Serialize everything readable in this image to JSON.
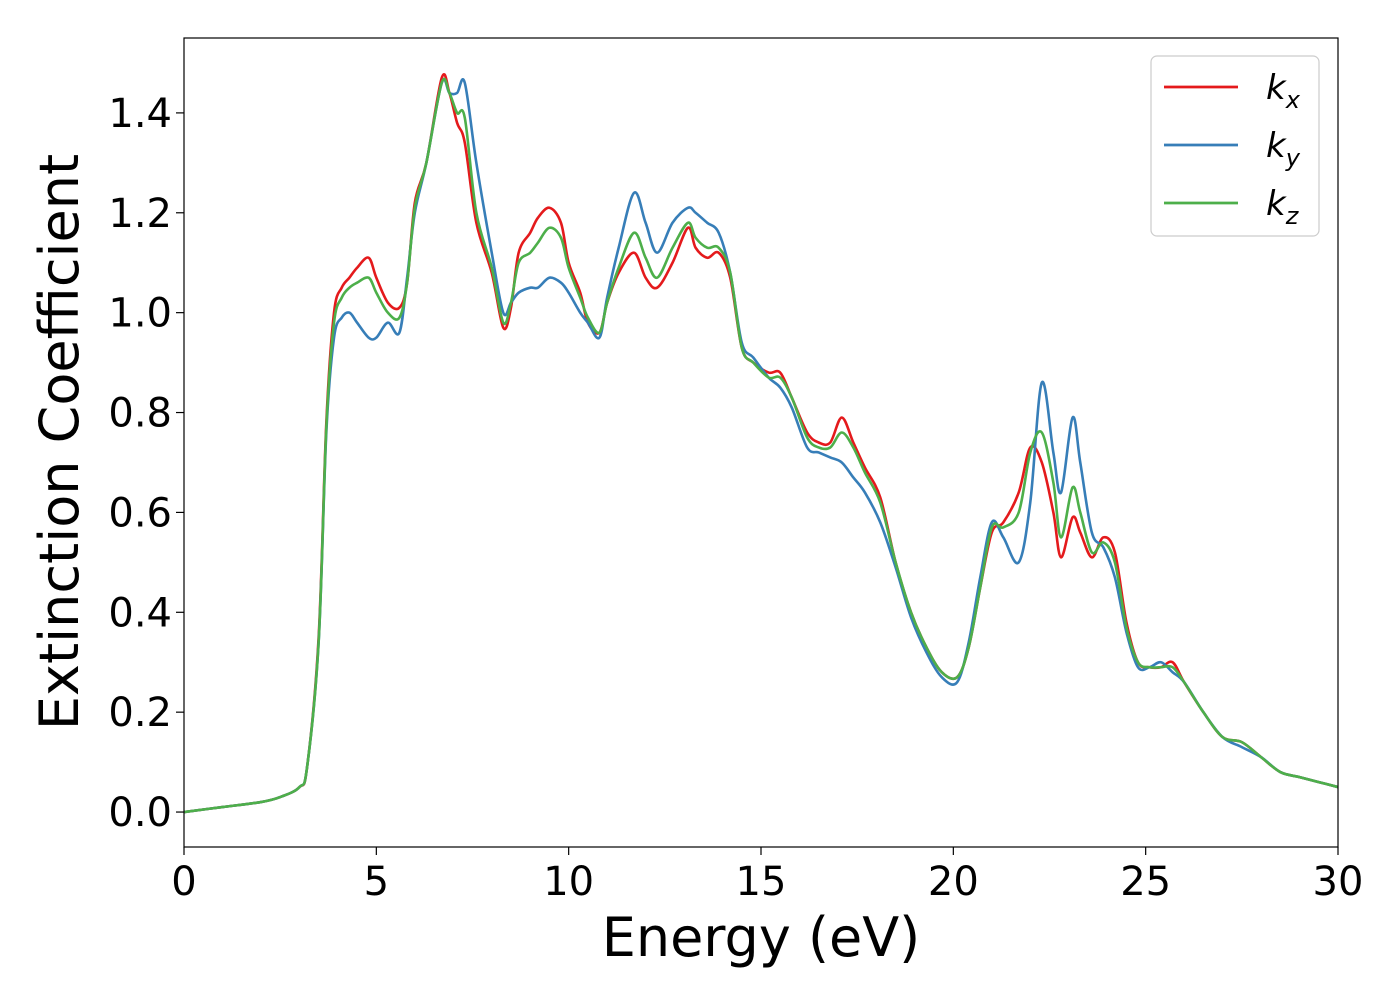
{
  "chart_data": {
    "type": "line",
    "xlabel": "Energy (eV)",
    "ylabel": "Extinction Coefficient",
    "xlim": [
      0,
      30
    ],
    "ylim": [
      -0.07,
      1.55
    ],
    "xticks": [
      "0",
      "5",
      "10",
      "15",
      "20",
      "25",
      "30"
    ],
    "yticks": [
      "0.0",
      "0.2",
      "0.4",
      "0.6",
      "0.8",
      "1.0",
      "1.2",
      "1.4"
    ],
    "legend_position": "top-right",
    "grid": false,
    "series": [
      {
        "name": "k",
        "subscript": "x",
        "color": "#e41a1c",
        "x": [
          0,
          1,
          2,
          2.5,
          3,
          3.2,
          3.5,
          3.7,
          3.9,
          4.1,
          4.3,
          4.5,
          4.8,
          5.0,
          5.3,
          5.6,
          5.8,
          6.0,
          6.3,
          6.7,
          6.9,
          7.1,
          7.3,
          7.6,
          8.0,
          8.3,
          8.5,
          8.7,
          9.0,
          9.2,
          9.5,
          9.8,
          10.0,
          10.3,
          10.5,
          10.8,
          11.0,
          11.3,
          11.7,
          12.0,
          12.3,
          12.7,
          13.1,
          13.3,
          13.6,
          13.9,
          14.2,
          14.5,
          14.8,
          15.2,
          15.5,
          15.8,
          16.2,
          16.5,
          16.8,
          17.1,
          17.4,
          17.7,
          18.1,
          18.5,
          18.9,
          19.3,
          19.7,
          20.1,
          20.4,
          20.7,
          21.0,
          21.3,
          21.7,
          22.0,
          22.3,
          22.6,
          22.8,
          23.1,
          23.3,
          23.6,
          23.9,
          24.2,
          24.5,
          24.8,
          25.1,
          25.4,
          25.7,
          26.0,
          26.5,
          27.0,
          27.5,
          28.0,
          28.5,
          29.0,
          29.5,
          30.0
        ],
        "values": [
          0.0,
          0.01,
          0.02,
          0.03,
          0.05,
          0.09,
          0.35,
          0.78,
          1.0,
          1.05,
          1.07,
          1.09,
          1.11,
          1.07,
          1.02,
          1.01,
          1.06,
          1.22,
          1.3,
          1.47,
          1.44,
          1.38,
          1.34,
          1.18,
          1.08,
          0.97,
          1.01,
          1.12,
          1.16,
          1.19,
          1.21,
          1.18,
          1.1,
          1.04,
          0.98,
          0.96,
          1.02,
          1.08,
          1.12,
          1.07,
          1.05,
          1.1,
          1.17,
          1.13,
          1.11,
          1.12,
          1.07,
          0.93,
          0.9,
          0.88,
          0.88,
          0.83,
          0.76,
          0.74,
          0.74,
          0.79,
          0.74,
          0.69,
          0.63,
          0.5,
          0.4,
          0.33,
          0.28,
          0.27,
          0.33,
          0.45,
          0.56,
          0.58,
          0.64,
          0.73,
          0.7,
          0.6,
          0.51,
          0.59,
          0.56,
          0.51,
          0.55,
          0.52,
          0.38,
          0.3,
          0.29,
          0.29,
          0.3,
          0.26,
          0.2,
          0.15,
          0.14,
          0.11,
          0.08,
          0.07,
          0.06,
          0.05
        ]
      },
      {
        "name": "k",
        "subscript": "y",
        "color": "#377eb8",
        "x": [
          0,
          1,
          2,
          2.5,
          3,
          3.2,
          3.5,
          3.7,
          3.9,
          4.1,
          4.3,
          4.5,
          4.8,
          5.0,
          5.3,
          5.6,
          5.8,
          6.0,
          6.3,
          6.7,
          6.9,
          7.1,
          7.3,
          7.6,
          8.0,
          8.3,
          8.5,
          8.7,
          9.0,
          9.2,
          9.5,
          9.8,
          10.0,
          10.3,
          10.5,
          10.8,
          11.0,
          11.3,
          11.7,
          12.0,
          12.3,
          12.7,
          13.1,
          13.3,
          13.6,
          13.9,
          14.2,
          14.5,
          14.8,
          15.2,
          15.5,
          15.8,
          16.2,
          16.5,
          16.8,
          17.1,
          17.4,
          17.7,
          18.1,
          18.5,
          18.9,
          19.3,
          19.7,
          20.1,
          20.4,
          20.7,
          21.0,
          21.3,
          21.7,
          22.0,
          22.3,
          22.6,
          22.8,
          23.1,
          23.3,
          23.6,
          23.9,
          24.2,
          24.5,
          24.8,
          25.1,
          25.4,
          25.7,
          26.0,
          26.5,
          27.0,
          27.5,
          28.0,
          28.5,
          29.0,
          29.5,
          30.0
        ],
        "values": [
          0.0,
          0.01,
          0.02,
          0.03,
          0.05,
          0.09,
          0.34,
          0.76,
          0.95,
          0.99,
          1.0,
          0.98,
          0.95,
          0.95,
          0.98,
          0.96,
          1.07,
          1.2,
          1.3,
          1.46,
          1.44,
          1.44,
          1.46,
          1.3,
          1.12,
          1.0,
          1.02,
          1.04,
          1.05,
          1.05,
          1.07,
          1.06,
          1.04,
          1.0,
          0.98,
          0.95,
          1.03,
          1.13,
          1.24,
          1.18,
          1.12,
          1.18,
          1.21,
          1.2,
          1.18,
          1.16,
          1.08,
          0.94,
          0.91,
          0.87,
          0.85,
          0.81,
          0.73,
          0.72,
          0.71,
          0.7,
          0.67,
          0.64,
          0.58,
          0.49,
          0.39,
          0.32,
          0.27,
          0.26,
          0.34,
          0.47,
          0.58,
          0.55,
          0.5,
          0.62,
          0.86,
          0.72,
          0.64,
          0.79,
          0.7,
          0.56,
          0.53,
          0.47,
          0.36,
          0.29,
          0.29,
          0.3,
          0.28,
          0.26,
          0.2,
          0.15,
          0.13,
          0.11,
          0.08,
          0.07,
          0.06,
          0.05
        ]
      },
      {
        "name": "k",
        "subscript": "z",
        "color": "#4daf4a",
        "x": [
          0,
          1,
          2,
          2.5,
          3,
          3.2,
          3.5,
          3.7,
          3.9,
          4.1,
          4.3,
          4.5,
          4.8,
          5.0,
          5.3,
          5.6,
          5.8,
          6.0,
          6.3,
          6.7,
          6.9,
          7.1,
          7.3,
          7.6,
          8.0,
          8.3,
          8.5,
          8.7,
          9.0,
          9.2,
          9.5,
          9.8,
          10.0,
          10.3,
          10.5,
          10.8,
          11.0,
          11.3,
          11.7,
          12.0,
          12.3,
          12.7,
          13.1,
          13.3,
          13.6,
          13.9,
          14.2,
          14.5,
          14.8,
          15.2,
          15.5,
          15.8,
          16.2,
          16.5,
          16.8,
          17.1,
          17.4,
          17.7,
          18.1,
          18.5,
          18.9,
          19.3,
          19.7,
          20.1,
          20.4,
          20.7,
          21.0,
          21.3,
          21.7,
          22.0,
          22.3,
          22.6,
          22.8,
          23.1,
          23.3,
          23.6,
          23.9,
          24.2,
          24.5,
          24.8,
          25.1,
          25.4,
          25.7,
          26.0,
          26.5,
          27.0,
          27.5,
          28.0,
          28.5,
          29.0,
          29.5,
          30.0
        ],
        "values": [
          0.0,
          0.01,
          0.02,
          0.03,
          0.05,
          0.09,
          0.34,
          0.77,
          0.98,
          1.03,
          1.05,
          1.06,
          1.07,
          1.04,
          1.0,
          0.99,
          1.06,
          1.21,
          1.3,
          1.46,
          1.44,
          1.4,
          1.39,
          1.2,
          1.09,
          0.98,
          1.02,
          1.1,
          1.12,
          1.14,
          1.17,
          1.15,
          1.09,
          1.03,
          0.99,
          0.96,
          1.02,
          1.09,
          1.16,
          1.11,
          1.07,
          1.13,
          1.18,
          1.15,
          1.13,
          1.13,
          1.08,
          0.93,
          0.9,
          0.87,
          0.87,
          0.83,
          0.75,
          0.73,
          0.73,
          0.76,
          0.73,
          0.68,
          0.62,
          0.5,
          0.4,
          0.33,
          0.28,
          0.27,
          0.33,
          0.45,
          0.57,
          0.57,
          0.6,
          0.72,
          0.76,
          0.66,
          0.55,
          0.65,
          0.6,
          0.52,
          0.54,
          0.5,
          0.37,
          0.3,
          0.29,
          0.29,
          0.29,
          0.26,
          0.2,
          0.15,
          0.14,
          0.11,
          0.08,
          0.07,
          0.06,
          0.05
        ]
      }
    ]
  }
}
